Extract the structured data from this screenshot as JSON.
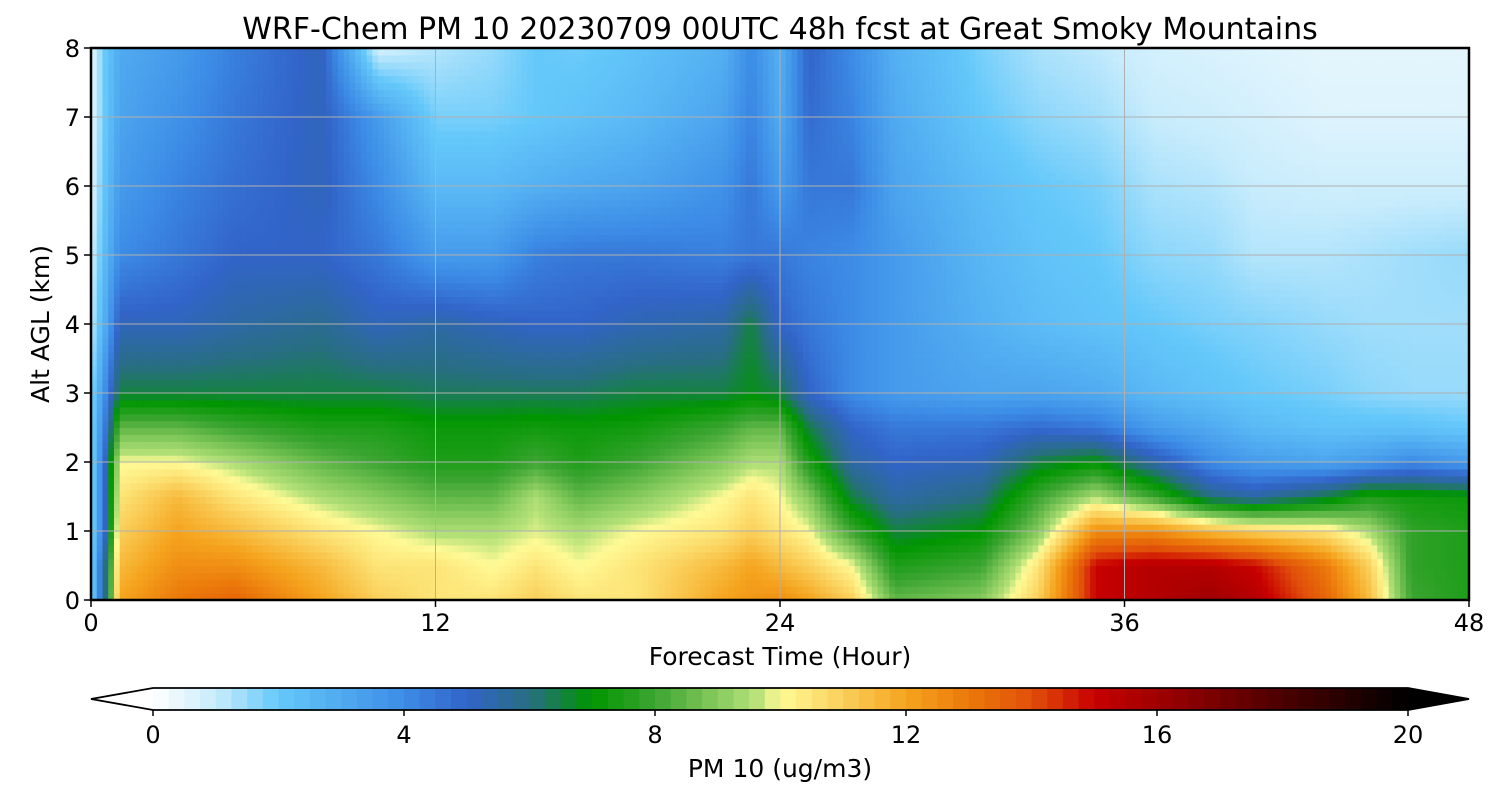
{
  "chart_data": {
    "type": "heatmap",
    "title": "WRF-Chem PM 10  20230709 00UTC 48h fcst at Great Smoky Mountains",
    "xlabel": "Forecast Time (Hour)",
    "ylabel": "Alt AGL (km)",
    "xlim": [
      0,
      48
    ],
    "ylim": [
      0,
      8
    ],
    "x_ticks": [
      0,
      12,
      24,
      36,
      48
    ],
    "x_tick_labels": [
      "0",
      "12",
      "24",
      "36",
      "48"
    ],
    "y_ticks": [
      0,
      1,
      2,
      3,
      4,
      5,
      6,
      7,
      8
    ],
    "y_tick_labels": [
      "0",
      "1",
      "2",
      "3",
      "4",
      "5",
      "6",
      "7",
      "8"
    ],
    "grid": true,
    "colorbar": {
      "label": "PM 10  (ug/m3)",
      "vmin": 0,
      "vmax": 20,
      "ticks": [
        0,
        4,
        8,
        12,
        16,
        20
      ],
      "tick_labels": [
        "0",
        "4",
        "8",
        "12",
        "16",
        "20"
      ],
      "extend": "both",
      "color_stops": [
        [
          0,
          "#ffffff"
        ],
        [
          1,
          "#c8ecfc"
        ],
        [
          2,
          "#64c8fa"
        ],
        [
          4,
          "#3c8ce6"
        ],
        [
          5,
          "#3264c8"
        ],
        [
          6,
          "#286e82"
        ],
        [
          7,
          "#009600"
        ],
        [
          8,
          "#3ca532"
        ],
        [
          9.6,
          "#b4e178"
        ],
        [
          10,
          "#fffa96"
        ],
        [
          12,
          "#f5a41e"
        ],
        [
          13,
          "#eb780a"
        ],
        [
          14,
          "#e1500a"
        ],
        [
          15,
          "#c80000"
        ],
        [
          16,
          "#a00000"
        ],
        [
          18,
          "#4b0000"
        ],
        [
          20,
          "#000000"
        ]
      ]
    },
    "x": [
      0,
      0.5,
      1,
      3,
      5,
      8,
      10,
      12,
      14,
      15.5,
      17,
      19,
      22,
      23,
      24,
      25,
      26.5,
      28,
      31,
      33,
      35,
      37,
      39,
      40.5,
      43,
      44.5,
      46,
      48
    ],
    "y": [
      0,
      0.5,
      1,
      1.5,
      2,
      2.5,
      3,
      4,
      5,
      6,
      7,
      8
    ],
    "z": [
      [
        1.5,
        6,
        12,
        13,
        13.5,
        12,
        11,
        10.5,
        10.5,
        11,
        10.5,
        10.5,
        12,
        12.3,
        12.5,
        12,
        11,
        8.5,
        9,
        11,
        15,
        15.5,
        16,
        15.5,
        13.5,
        11.5,
        8,
        7.5
      ],
      [
        1.5,
        6,
        11.5,
        12.5,
        12.5,
        11.5,
        10.5,
        10.5,
        10,
        10.5,
        10,
        10.5,
        11.5,
        12,
        11.5,
        11,
        10,
        7.5,
        8,
        10.5,
        15,
        15.5,
        15.5,
        15,
        13,
        11,
        7.8,
        7.5
      ],
      [
        1.5,
        5,
        11,
        12,
        11.5,
        10.5,
        10,
        9.5,
        9.5,
        9.8,
        9.5,
        10,
        10.5,
        11,
        10.5,
        10,
        8,
        6.5,
        7,
        9,
        12.5,
        12.5,
        11.5,
        11,
        10.5,
        9.5,
        7.8,
        7.5
      ],
      [
        1.5,
        5,
        10.5,
        11.5,
        10.5,
        9.5,
        9,
        8.5,
        8.5,
        9.5,
        8.5,
        9,
        10,
        10.5,
        10,
        9,
        6.5,
        5.5,
        6,
        8,
        9.5,
        8,
        6,
        5.5,
        6.5,
        7.5,
        7.3,
        7.2
      ],
      [
        1.5,
        5,
        10,
        10,
        9.5,
        8.5,
        8,
        7.5,
        7.5,
        8,
        7.5,
        8,
        9,
        9.5,
        9.5,
        7.5,
        5.5,
        5,
        5.2,
        6.5,
        7,
        5.5,
        4,
        3.5,
        3.2,
        3.5,
        4,
        3.5
      ],
      [
        1.5,
        4.5,
        8.5,
        8.5,
        8,
        7.5,
        7.5,
        7.2,
        7.2,
        7.3,
        7.2,
        7.3,
        8,
        8.5,
        8.5,
        6.5,
        5,
        4.5,
        4.5,
        4.8,
        4.5,
        3.5,
        3,
        2.5,
        2.2,
        2.2,
        2.2,
        2
      ],
      [
        1.5,
        4,
        6.5,
        6.5,
        6.5,
        6.5,
        6.5,
        6.3,
        6.3,
        6.3,
        6.3,
        6.5,
        6.5,
        6.8,
        6.5,
        5,
        4,
        3.5,
        3.2,
        3.2,
        3,
        2.5,
        2.2,
        2,
        1.8,
        1.6,
        1.5,
        1.5
      ],
      [
        1,
        3,
        5.2,
        5.2,
        5.5,
        5.8,
        5.2,
        5.5,
        5.2,
        5,
        5,
        5.3,
        5.5,
        6.5,
        5,
        4.5,
        4,
        3.5,
        2.8,
        2.4,
        2.2,
        2,
        1.8,
        1.7,
        1.5,
        1.4,
        1.4,
        1.4
      ],
      [
        0.8,
        2.5,
        4,
        4.5,
        5,
        5,
        4.5,
        3.5,
        3.5,
        4.3,
        4.5,
        4.5,
        4.3,
        4.5,
        4.5,
        4.2,
        4,
        3.5,
        2.6,
        2.2,
        2,
        1.6,
        1.5,
        1.2,
        1.2,
        1.3,
        1.4,
        1.5
      ],
      [
        0.6,
        2.2,
        3.5,
        4.2,
        4.7,
        5.2,
        4,
        2.5,
        2.5,
        2.8,
        3,
        3.2,
        3.8,
        4.5,
        3.5,
        4.5,
        4.5,
        3.2,
        2.4,
        2,
        1.8,
        1.3,
        1.2,
        1,
        0.9,
        0.9,
        0.9,
        0.9
      ],
      [
        0.5,
        2,
        3.2,
        3.8,
        4.5,
        5.2,
        3.5,
        1.8,
        1.8,
        2,
        2.2,
        2.5,
        3.2,
        4.2,
        3,
        4.8,
        4.2,
        3,
        2,
        1.6,
        1.4,
        1,
        0.9,
        0.8,
        0.6,
        0.6,
        0.6,
        0.6
      ],
      [
        0.5,
        2,
        3,
        3.5,
        4.3,
        5.2,
        0.8,
        1.2,
        1.5,
        2,
        1.9,
        2.2,
        2.8,
        4,
        2.8,
        5,
        4,
        2.8,
        1.8,
        1.3,
        1.1,
        0.8,
        0.7,
        0.6,
        0.5,
        0.5,
        0.5,
        0.5
      ]
    ]
  }
}
